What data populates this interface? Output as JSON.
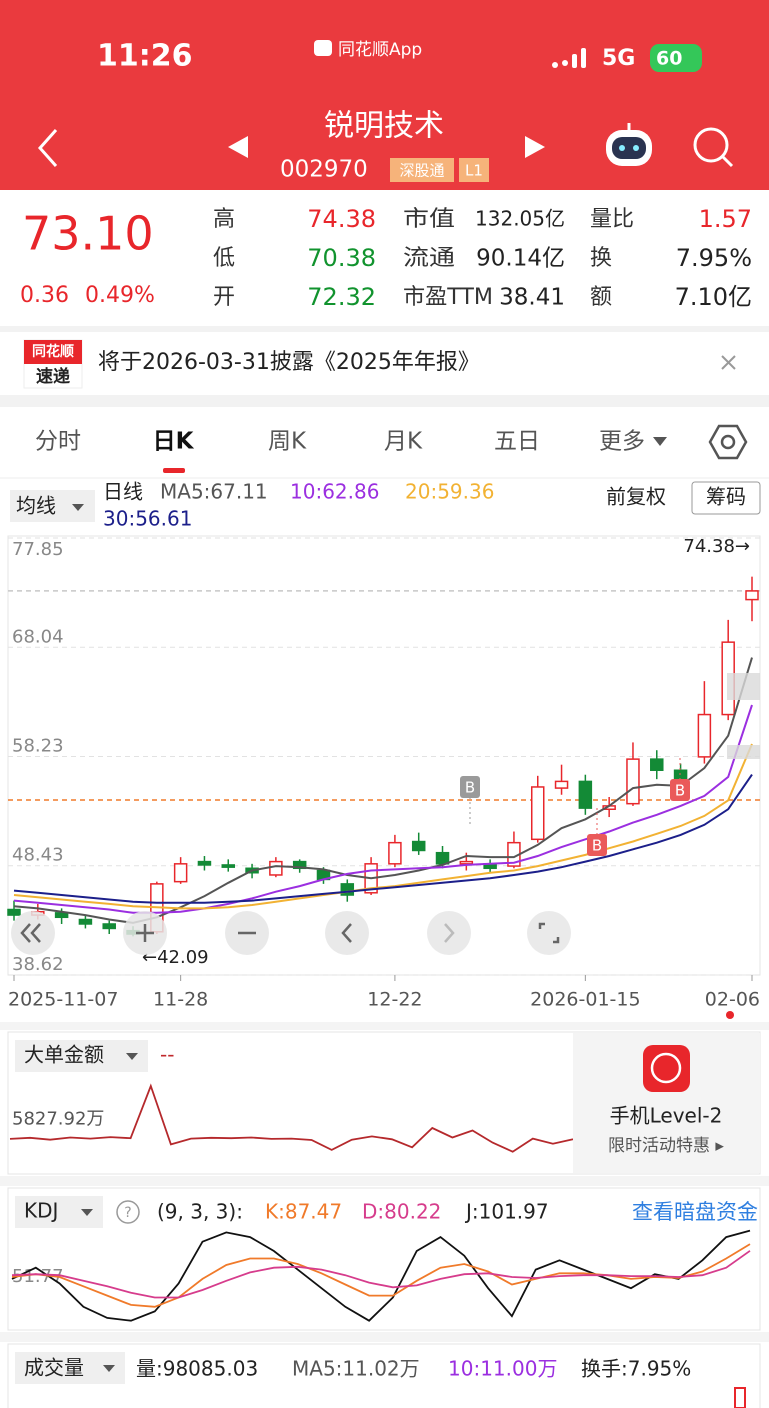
{
  "status": {
    "time": "11:26",
    "app": "同花顺App",
    "network": "5G",
    "battery": "60"
  },
  "header": {
    "name": "锐明技术",
    "code": "002970",
    "tags": [
      "深股通",
      "L1"
    ]
  },
  "quote": {
    "price": "73.10",
    "change": "0.36",
    "change_pct": "0.49%",
    "col1": [
      {
        "label": "高",
        "value": "74.38",
        "color": "#e8262b"
      },
      {
        "label": "低",
        "value": "70.38",
        "color": "#11932e"
      },
      {
        "label": "开",
        "value": "72.32",
        "color": "#11932e"
      }
    ],
    "col2": [
      {
        "label": "市值",
        "value": "132.05亿"
      },
      {
        "label": "流通",
        "value": "90.14亿"
      },
      {
        "label": "市盈TTM",
        "value": "38.41"
      }
    ],
    "col3": [
      {
        "label": "量比",
        "value": "1.57",
        "color": "#e8262b"
      },
      {
        "label": "换",
        "value": "7.95%",
        "color": "#222"
      },
      {
        "label": "额",
        "value": "7.10亿",
        "color": "#222"
      }
    ]
  },
  "notice": {
    "logo_top": "同花顺",
    "logo_bottom": "速递",
    "text": "将于2026-03-31披露《2025年年报》"
  },
  "tabs": [
    "分时",
    "日K",
    "周K",
    "月K",
    "五日",
    "更多"
  ],
  "ma_row": {
    "button": "均线",
    "period": "日线",
    "ma5": "MA5:67.11",
    "ma10": "10:62.86",
    "ma20": "20:59.36",
    "ma30": "30:56.61",
    "adjust": "前复权",
    "chips": "筹码"
  },
  "kline": {
    "ylim": [
      38.62,
      77.85
    ],
    "yticks": [
      77.85,
      68.04,
      58.23,
      48.43,
      38.62
    ],
    "categories": [
      "2025-11-07",
      null,
      null,
      null,
      null,
      null,
      null,
      "11-28",
      null,
      null,
      null,
      null,
      null,
      null,
      null,
      null,
      "12-22",
      null,
      null,
      null,
      null,
      null,
      null,
      null,
      "2026-01-15",
      null,
      null,
      null,
      null,
      null,
      null,
      "02-06"
    ],
    "candles": {
      "open": [
        44.5,
        44.0,
        44.2,
        43.6,
        43.2,
        42.6,
        42.5,
        47.0,
        48.8,
        48.5,
        48.2,
        47.6,
        48.8,
        48.0,
        46.8,
        46.0,
        48.6,
        50.6,
        49.6,
        48.6,
        48.6,
        48.4,
        50.8,
        55.4,
        56.0,
        53.5,
        54.0,
        58.0,
        57.0,
        58.2,
        62.0,
        72.32
      ],
      "close": [
        44.0,
        44.3,
        43.8,
        43.2,
        42.8,
        42.3,
        46.8,
        48.6,
        48.5,
        48.3,
        47.8,
        48.8,
        48.2,
        47.2,
        45.8,
        48.6,
        50.5,
        49.8,
        48.6,
        48.8,
        48.2,
        50.5,
        55.5,
        56.0,
        53.6,
        53.8,
        58.0,
        57.0,
        55.4,
        62.0,
        68.5,
        73.1
      ],
      "high": [
        45.3,
        45.0,
        44.6,
        44.0,
        43.5,
        43.0,
        47.0,
        49.2,
        49.3,
        49.0,
        48.6,
        49.2,
        49.0,
        48.3,
        47.2,
        49.2,
        51.2,
        51.4,
        50.2,
        49.6,
        49.0,
        51.5,
        56.5,
        57.5,
        56.6,
        54.6,
        59.5,
        58.8,
        57.6,
        65.0,
        70.5,
        74.38
      ],
      "low": [
        43.5,
        43.6,
        43.2,
        42.8,
        42.3,
        42.09,
        42.3,
        46.8,
        48.0,
        47.9,
        47.3,
        47.4,
        47.8,
        46.8,
        45.2,
        45.8,
        48.3,
        49.4,
        48.2,
        48.0,
        47.8,
        48.2,
        50.5,
        54.8,
        53.0,
        52.8,
        53.8,
        56.2,
        54.8,
        57.6,
        61.5,
        70.38
      ]
    },
    "up_color": "#e8262b",
    "down_color": "#138a36",
    "ma": [
      {
        "color": "#555555",
        "values": [
          44.8,
          44.6,
          44.3,
          44.0,
          43.6,
          43.3,
          43.8,
          44.7,
          45.7,
          46.9,
          48.0,
          48.4,
          48.3,
          48.1,
          47.6,
          47.3,
          47.6,
          48.0,
          48.5,
          49.3,
          49.2,
          49.2,
          50.3,
          51.8,
          52.6,
          53.8,
          55.4,
          55.7,
          55.6,
          57.2,
          60.1,
          67.11
        ]
      },
      {
        "color": "#9b2fe0",
        "values": [
          45.3,
          45.1,
          44.9,
          44.7,
          44.5,
          44.2,
          44.2,
          44.3,
          44.6,
          45.0,
          45.5,
          46.1,
          46.6,
          47.2,
          47.7,
          48.0,
          48.1,
          48.2,
          48.3,
          48.5,
          48.6,
          48.7,
          49.3,
          50.1,
          50.8,
          51.5,
          52.3,
          53.0,
          53.8,
          54.7,
          56.4,
          62.86
        ]
      },
      {
        "color": "#f2b233",
        "values": [
          45.8,
          45.6,
          45.4,
          45.2,
          45.0,
          44.8,
          44.7,
          44.6,
          44.6,
          44.7,
          44.9,
          45.2,
          45.5,
          45.8,
          46.1,
          46.4,
          46.6,
          46.9,
          47.2,
          47.5,
          47.8,
          48.0,
          48.4,
          48.9,
          49.4,
          50.0,
          50.6,
          51.3,
          52.0,
          52.9,
          54.3,
          59.36
        ]
      },
      {
        "color": "#1c1f8a",
        "values": [
          46.2,
          46.0,
          45.8,
          45.6,
          45.4,
          45.2,
          45.1,
          45.1,
          45.1,
          45.2,
          45.3,
          45.5,
          45.7,
          45.9,
          46.1,
          46.3,
          46.5,
          46.7,
          46.9,
          47.1,
          47.3,
          47.6,
          47.9,
          48.3,
          48.8,
          49.3,
          49.9,
          50.5,
          51.2,
          52.1,
          53.5,
          56.61
        ]
      }
    ],
    "ref_lines": [
      {
        "value": 73.1,
        "color": "#c8c8c8"
      },
      {
        "value": 54.33,
        "color": "#f07a2a"
      }
    ],
    "annotations": [
      "74.38→",
      "←42.09"
    ],
    "markers": [
      "B",
      "B",
      "B"
    ]
  },
  "big_order": {
    "title": "大单金额",
    "value": "--",
    "ylim": [
      -8000,
      18000
    ],
    "yticks": [
      {
        "value": 5827.92,
        "label": "5827.92万"
      }
    ],
    "color": "#b5292c",
    "values": [
      500,
      800,
      300,
      900,
      600,
      1000,
      700,
      15000,
      -1000,
      600,
      800,
      700,
      900,
      500,
      600,
      200,
      -2500,
      300,
      1200,
      400,
      -1800,
      3500,
      900,
      2800,
      -500,
      -3000,
      600,
      -800,
      400
    ],
    "promo_title": "手机Level-2",
    "promo_sub": "限时活动特惠 ▸"
  },
  "kdj": {
    "title": "KDJ",
    "params": "(9, 3, 3):",
    "k_label": "K:87.47",
    "d_label": "D:80.22",
    "j_label": "J:101.97",
    "link": "查看暗盘资金",
    "ylim": [
      -5,
      108
    ],
    "yticks": [
      {
        "value": 51.77,
        "label": "51.77"
      }
    ],
    "series": [
      {
        "color": "#111111",
        "values": [
          50,
          62,
          45,
          20,
          8,
          5,
          15,
          45,
          90,
          100,
          95,
          80,
          60,
          40,
          20,
          5,
          30,
          80,
          95,
          75,
          40,
          10,
          60,
          70,
          60,
          50,
          40,
          55,
          50,
          70,
          95,
          101.97
        ]
      },
      {
        "color": "#f07a2a",
        "values": [
          52,
          55,
          52,
          42,
          32,
          22,
          20,
          30,
          50,
          65,
          72,
          72,
          66,
          56,
          44,
          32,
          32,
          48,
          62,
          66,
          58,
          44,
          50,
          56,
          56,
          54,
          50,
          52,
          51,
          58,
          72,
          87.47
        ]
      },
      {
        "color": "#d63c8c",
        "values": [
          54,
          55,
          54,
          48,
          42,
          35,
          30,
          30,
          38,
          48,
          57,
          62,
          63,
          60,
          54,
          46,
          41,
          43,
          50,
          55,
          56,
          52,
          51,
          53,
          54,
          54,
          53,
          53,
          52,
          54,
          62,
          80.22
        ]
      }
    ]
  },
  "volume": {
    "title": "成交量",
    "vol": "量:98085.03",
    "ma5": "MA5:11.02万",
    "ma10": "10:11.00万",
    "turnover": "换手:7.95%"
  }
}
